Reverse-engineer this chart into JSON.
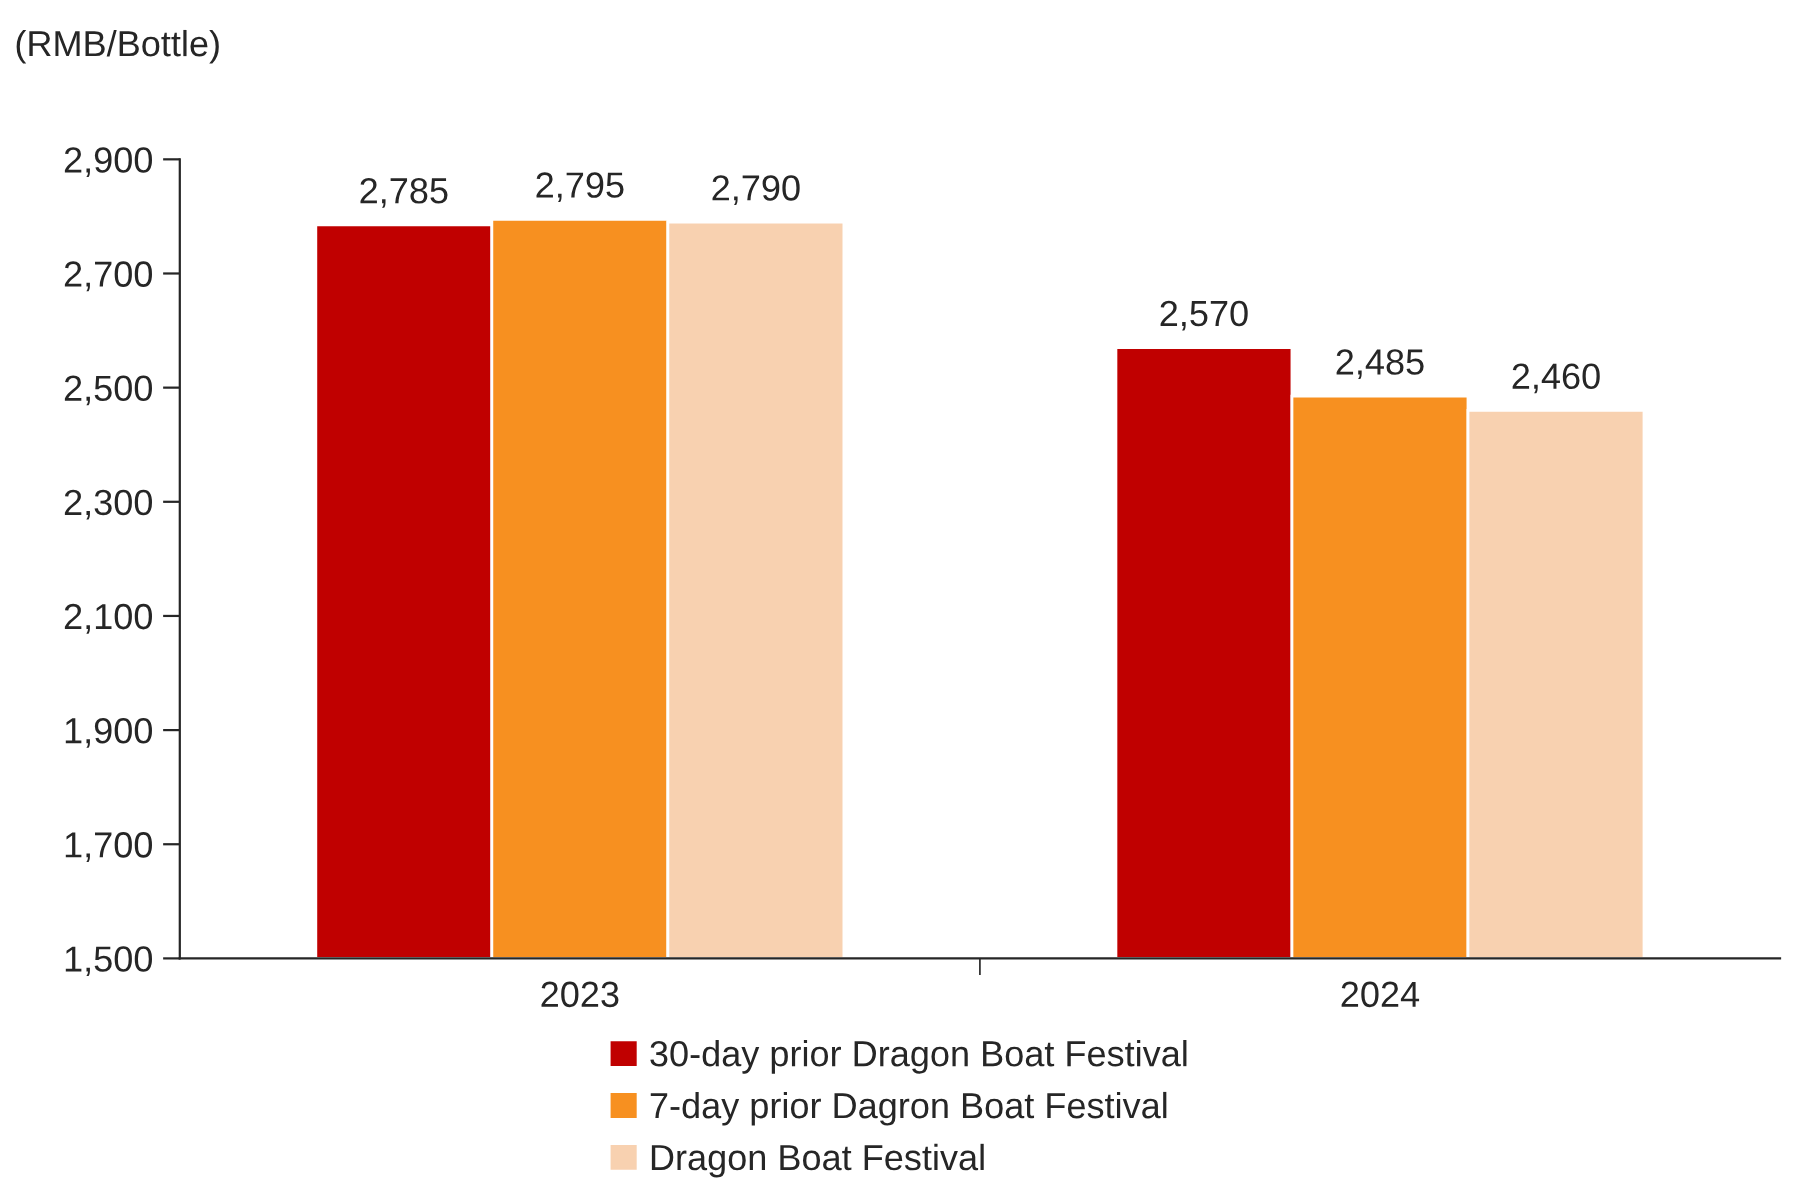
{
  "chart_data": {
    "type": "bar",
    "ylabel": "(RMB/Bottle)",
    "categories": [
      "2023",
      "2024"
    ],
    "series": [
      {
        "name": "30-day prior Dragon Boat Festival",
        "color": "#c00000",
        "values": [
          2785,
          2570
        ],
        "value_labels": [
          "2,785",
          "2,570"
        ]
      },
      {
        "name": "7-day prior Dagron Boat Festival",
        "color": "#f79020",
        "values": [
          2795,
          2485
        ],
        "value_labels": [
          "2,795",
          "2,485"
        ]
      },
      {
        "name": "Dragon Boat Festival",
        "color": "#f8d1b0",
        "values": [
          2790,
          2460
        ],
        "value_labels": [
          "2,790",
          "2,460"
        ]
      }
    ],
    "ylim": [
      1500,
      2900
    ],
    "yticks": [
      {
        "value": 1500,
        "label": "1,500"
      },
      {
        "value": 1700,
        "label": "1,700"
      },
      {
        "value": 1900,
        "label": "1,900"
      },
      {
        "value": 2100,
        "label": "2,100"
      },
      {
        "value": 2300,
        "label": "2,300"
      },
      {
        "value": 2500,
        "label": "2,500"
      },
      {
        "value": 2700,
        "label": "2,700"
      },
      {
        "value": 2900,
        "label": "2,900"
      }
    ],
    "grid": false,
    "legend": "bottom"
  }
}
